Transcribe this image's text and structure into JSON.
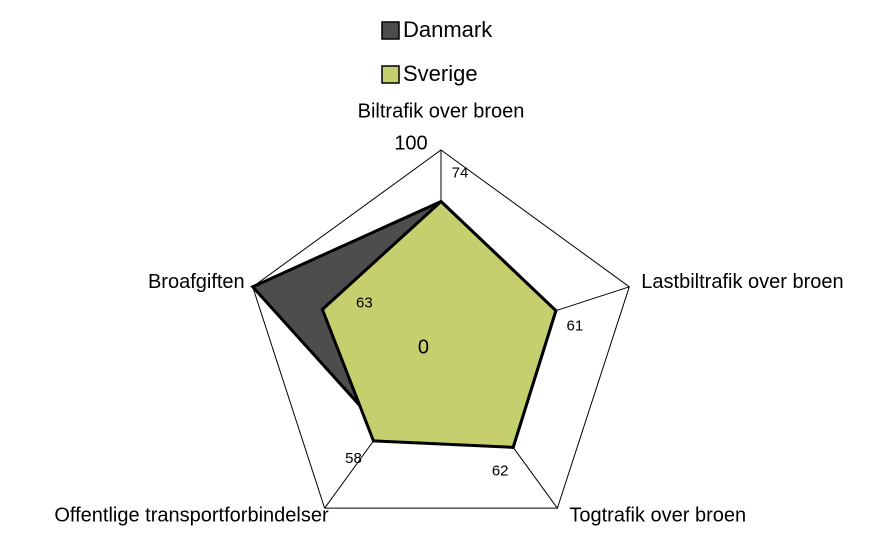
{
  "chart_data": {
    "type": "radar",
    "categories": [
      "Biltrafik over broen",
      "Lastbiltrafik over broen",
      "Togtrafik over broen",
      "Offentlige transportforbindelser",
      "Broafgiften"
    ],
    "series": [
      {
        "name": "Danmark",
        "color": "#4d4d4d",
        "values": [
          74,
          61,
          62,
          51,
          100
        ],
        "show_labels": [
          false,
          false,
          false,
          true,
          false
        ]
      },
      {
        "name": "Sverige",
        "color": "#c6cf6e",
        "values": [
          74,
          61,
          62,
          58,
          63
        ],
        "show_labels": [
          true,
          true,
          true,
          true,
          true
        ]
      }
    ],
    "rlim": [
      0,
      100
    ],
    "rticks": [
      0,
      100
    ],
    "legend": "top"
  }
}
